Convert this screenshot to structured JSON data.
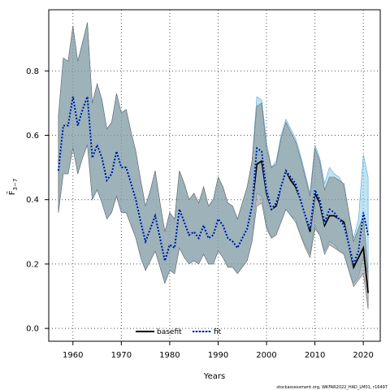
{
  "chart_data": {
    "type": "line",
    "title": "",
    "xlabel": "Years",
    "ylabel": "F̄",
    "ylabel_subscript": "3−7",
    "xlim": [
      1955,
      2023.5
    ],
    "ylim": [
      -0.04,
      0.99
    ],
    "x_ticks": [
      1960,
      1970,
      1980,
      1990,
      2000,
      2010,
      2020
    ],
    "y_ticks": [
      0.0,
      0.2,
      0.4,
      0.6,
      0.8
    ],
    "x_tick_labels": [
      "1960",
      "1970",
      "1980",
      "1990",
      "2000",
      "2010",
      "2020"
    ],
    "y_tick_labels": [
      "0.0",
      "0.2",
      "0.4",
      "0.6",
      "0.8"
    ],
    "grid": true,
    "legend_position": "bottom-center",
    "credit": "stockassessment.org, WKFAR2022_HAD_LM01, r16497",
    "x": [
      1957,
      1958,
      1959,
      1960,
      1961,
      1962,
      1963,
      1964,
      1965,
      1966,
      1967,
      1968,
      1969,
      1970,
      1971,
      1972,
      1973,
      1974,
      1975,
      1976,
      1977,
      1978,
      1979,
      1980,
      1981,
      1982,
      1983,
      1984,
      1985,
      1986,
      1987,
      1988,
      1989,
      1990,
      1991,
      1992,
      1993,
      1994,
      1995,
      1996,
      1997,
      1998,
      1999,
      2000,
      2001,
      2002,
      2003,
      2004,
      2005,
      2006,
      2007,
      2008,
      2009,
      2010,
      2011,
      2012,
      2013,
      2014,
      2015,
      2016,
      2017,
      2018,
      2019,
      2020,
      2021
    ],
    "series": [
      {
        "name": "basefit",
        "color": "#000000",
        "band_color": "#808080",
        "y": [
          0.49,
          0.63,
          0.63,
          0.72,
          0.63,
          0.68,
          0.72,
          0.53,
          0.57,
          0.53,
          0.46,
          0.48,
          0.55,
          0.5,
          0.5,
          0.45,
          0.4,
          0.33,
          0.27,
          0.31,
          0.35,
          0.28,
          0.21,
          0.26,
          0.25,
          0.37,
          0.33,
          0.29,
          0.3,
          0.28,
          0.32,
          0.28,
          0.29,
          0.34,
          0.32,
          0.28,
          0.27,
          0.25,
          0.28,
          0.31,
          0.38,
          0.51,
          0.52,
          0.42,
          0.37,
          0.38,
          0.44,
          0.49,
          0.46,
          0.44,
          0.4,
          0.35,
          0.3,
          0.42,
          0.39,
          0.32,
          0.35,
          0.35,
          0.34,
          0.33,
          0.26,
          0.19,
          0.22,
          0.25,
          0.11
        ],
        "lower": [
          0.36,
          0.48,
          0.48,
          0.56,
          0.48,
          0.53,
          0.57,
          0.4,
          0.43,
          0.39,
          0.34,
          0.36,
          0.41,
          0.36,
          0.36,
          0.32,
          0.28,
          0.22,
          0.18,
          0.21,
          0.24,
          0.19,
          0.14,
          0.18,
          0.17,
          0.25,
          0.22,
          0.2,
          0.21,
          0.2,
          0.23,
          0.2,
          0.2,
          0.24,
          0.22,
          0.19,
          0.19,
          0.17,
          0.19,
          0.21,
          0.27,
          0.38,
          0.39,
          0.31,
          0.28,
          0.29,
          0.33,
          0.37,
          0.35,
          0.33,
          0.29,
          0.25,
          0.22,
          0.31,
          0.29,
          0.23,
          0.26,
          0.25,
          0.24,
          0.23,
          0.18,
          0.13,
          0.15,
          0.17,
          0.06
        ],
        "upper": [
          0.66,
          0.84,
          0.83,
          0.94,
          0.83,
          0.89,
          0.95,
          0.7,
          0.76,
          0.71,
          0.62,
          0.64,
          0.73,
          0.67,
          0.68,
          0.61,
          0.55,
          0.46,
          0.38,
          0.43,
          0.49,
          0.39,
          0.3,
          0.36,
          0.34,
          0.49,
          0.45,
          0.4,
          0.42,
          0.39,
          0.44,
          0.38,
          0.4,
          0.47,
          0.44,
          0.39,
          0.38,
          0.34,
          0.39,
          0.44,
          0.52,
          0.69,
          0.7,
          0.56,
          0.5,
          0.51,
          0.59,
          0.64,
          0.61,
          0.58,
          0.53,
          0.47,
          0.41,
          0.56,
          0.52,
          0.43,
          0.47,
          0.47,
          0.46,
          0.45,
          0.36,
          0.27,
          0.31,
          0.35,
          0.17
        ]
      },
      {
        "name": "fit",
        "color": "#00008B",
        "band_color": "#87CEEB",
        "y": [
          0.49,
          0.63,
          0.63,
          0.72,
          0.63,
          0.68,
          0.72,
          0.53,
          0.57,
          0.53,
          0.46,
          0.48,
          0.55,
          0.5,
          0.5,
          0.45,
          0.4,
          0.33,
          0.27,
          0.31,
          0.35,
          0.28,
          0.21,
          0.26,
          0.25,
          0.37,
          0.33,
          0.29,
          0.3,
          0.28,
          0.32,
          0.28,
          0.29,
          0.34,
          0.32,
          0.28,
          0.27,
          0.25,
          0.28,
          0.31,
          0.38,
          0.56,
          0.55,
          0.43,
          0.37,
          0.39,
          0.44,
          0.49,
          0.47,
          0.45,
          0.4,
          0.35,
          0.31,
          0.43,
          0.4,
          0.33,
          0.37,
          0.36,
          0.34,
          0.32,
          0.26,
          0.2,
          0.24,
          0.36,
          0.29
        ],
        "lower": [
          0.36,
          0.48,
          0.48,
          0.56,
          0.48,
          0.53,
          0.57,
          0.4,
          0.43,
          0.39,
          0.34,
          0.36,
          0.41,
          0.36,
          0.36,
          0.32,
          0.28,
          0.22,
          0.18,
          0.21,
          0.24,
          0.19,
          0.14,
          0.18,
          0.17,
          0.25,
          0.22,
          0.2,
          0.21,
          0.2,
          0.23,
          0.2,
          0.2,
          0.24,
          0.22,
          0.19,
          0.19,
          0.17,
          0.19,
          0.21,
          0.27,
          0.42,
          0.41,
          0.32,
          0.28,
          0.29,
          0.33,
          0.37,
          0.35,
          0.34,
          0.29,
          0.26,
          0.23,
          0.32,
          0.29,
          0.24,
          0.27,
          0.26,
          0.24,
          0.23,
          0.18,
          0.14,
          0.16,
          0.22,
          0.17
        ],
        "upper": [
          0.66,
          0.84,
          0.83,
          0.94,
          0.83,
          0.89,
          0.95,
          0.7,
          0.76,
          0.71,
          0.62,
          0.64,
          0.73,
          0.67,
          0.68,
          0.61,
          0.55,
          0.46,
          0.38,
          0.43,
          0.49,
          0.39,
          0.3,
          0.36,
          0.34,
          0.49,
          0.45,
          0.4,
          0.42,
          0.39,
          0.44,
          0.38,
          0.4,
          0.47,
          0.44,
          0.39,
          0.38,
          0.34,
          0.39,
          0.44,
          0.52,
          0.72,
          0.71,
          0.58,
          0.5,
          0.52,
          0.6,
          0.65,
          0.62,
          0.59,
          0.54,
          0.48,
          0.42,
          0.57,
          0.53,
          0.45,
          0.5,
          0.48,
          0.47,
          0.44,
          0.36,
          0.28,
          0.34,
          0.54,
          0.47
        ]
      }
    ]
  }
}
